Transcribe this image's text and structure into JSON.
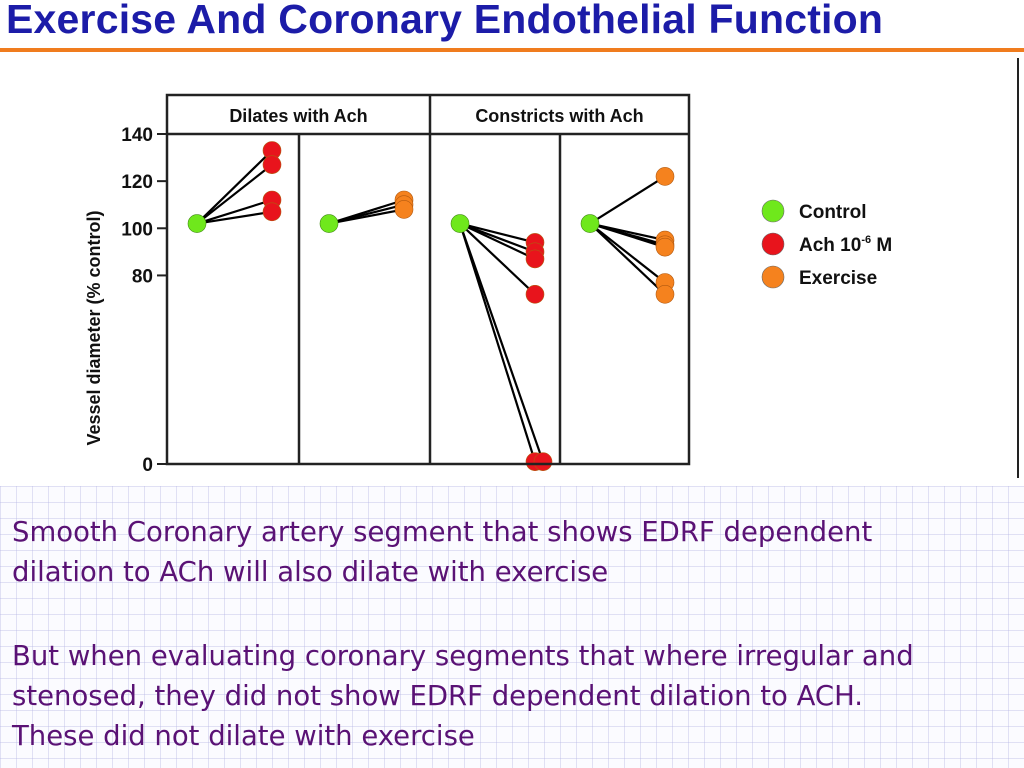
{
  "slide": {
    "title": "Exercise And Coronary Endothelial Function",
    "paragraph_1": {
      "line_1": "Smooth Coronary artery segment that shows EDRF dependent",
      "line_2": "dilation to ACh will also dilate with exercise"
    },
    "paragraph_2": {
      "line_1": "But when evaluating coronary segments that where irregular and",
      "line_2": "stenosed, they did not show EDRF dependent dilation to ACH.",
      "line_3": "These did not dilate with exercise"
    }
  },
  "colors": {
    "title": "#1c1ca8",
    "title_rule": "#f07c1e",
    "body_text": "#5a1275",
    "control": "#6fe81c",
    "ach": "#e8141c",
    "exercise": "#f5821e"
  },
  "chart_data": {
    "type": "scatter",
    "ylabel": "Vessel diameter (% control)",
    "ylim": [
      0,
      140
    ],
    "yticks": [
      0,
      80,
      100,
      120,
      140
    ],
    "groups": [
      {
        "label": "Dilates with Ach",
        "panels": [
          0,
          1
        ]
      },
      {
        "label": "Constricts with Ach",
        "panels": [
          2,
          3
        ]
      }
    ],
    "legend": {
      "placement": "right",
      "entries": [
        {
          "label": "Control",
          "color": "#6fe81c"
        },
        {
          "label": "Ach 10",
          "superscript": "-6",
          "unit": "M",
          "color": "#e8141c"
        },
        {
          "label": "Exercise",
          "color": "#f5821e"
        }
      ]
    },
    "panels": [
      {
        "start": 102,
        "end_series": "Ach 10-6 M",
        "end_values": [
          133,
          127,
          112,
          107
        ]
      },
      {
        "start": 102,
        "end_series": "Exercise",
        "end_values": [
          112,
          110,
          108
        ]
      },
      {
        "start": 102,
        "end_series": "Ach 10-6 M",
        "end_values": [
          94,
          90,
          87,
          72,
          1,
          1
        ]
      },
      {
        "start": 102,
        "end_series": "Exercise",
        "end_values": [
          122,
          95,
          93,
          92,
          77,
          72
        ]
      }
    ]
  }
}
